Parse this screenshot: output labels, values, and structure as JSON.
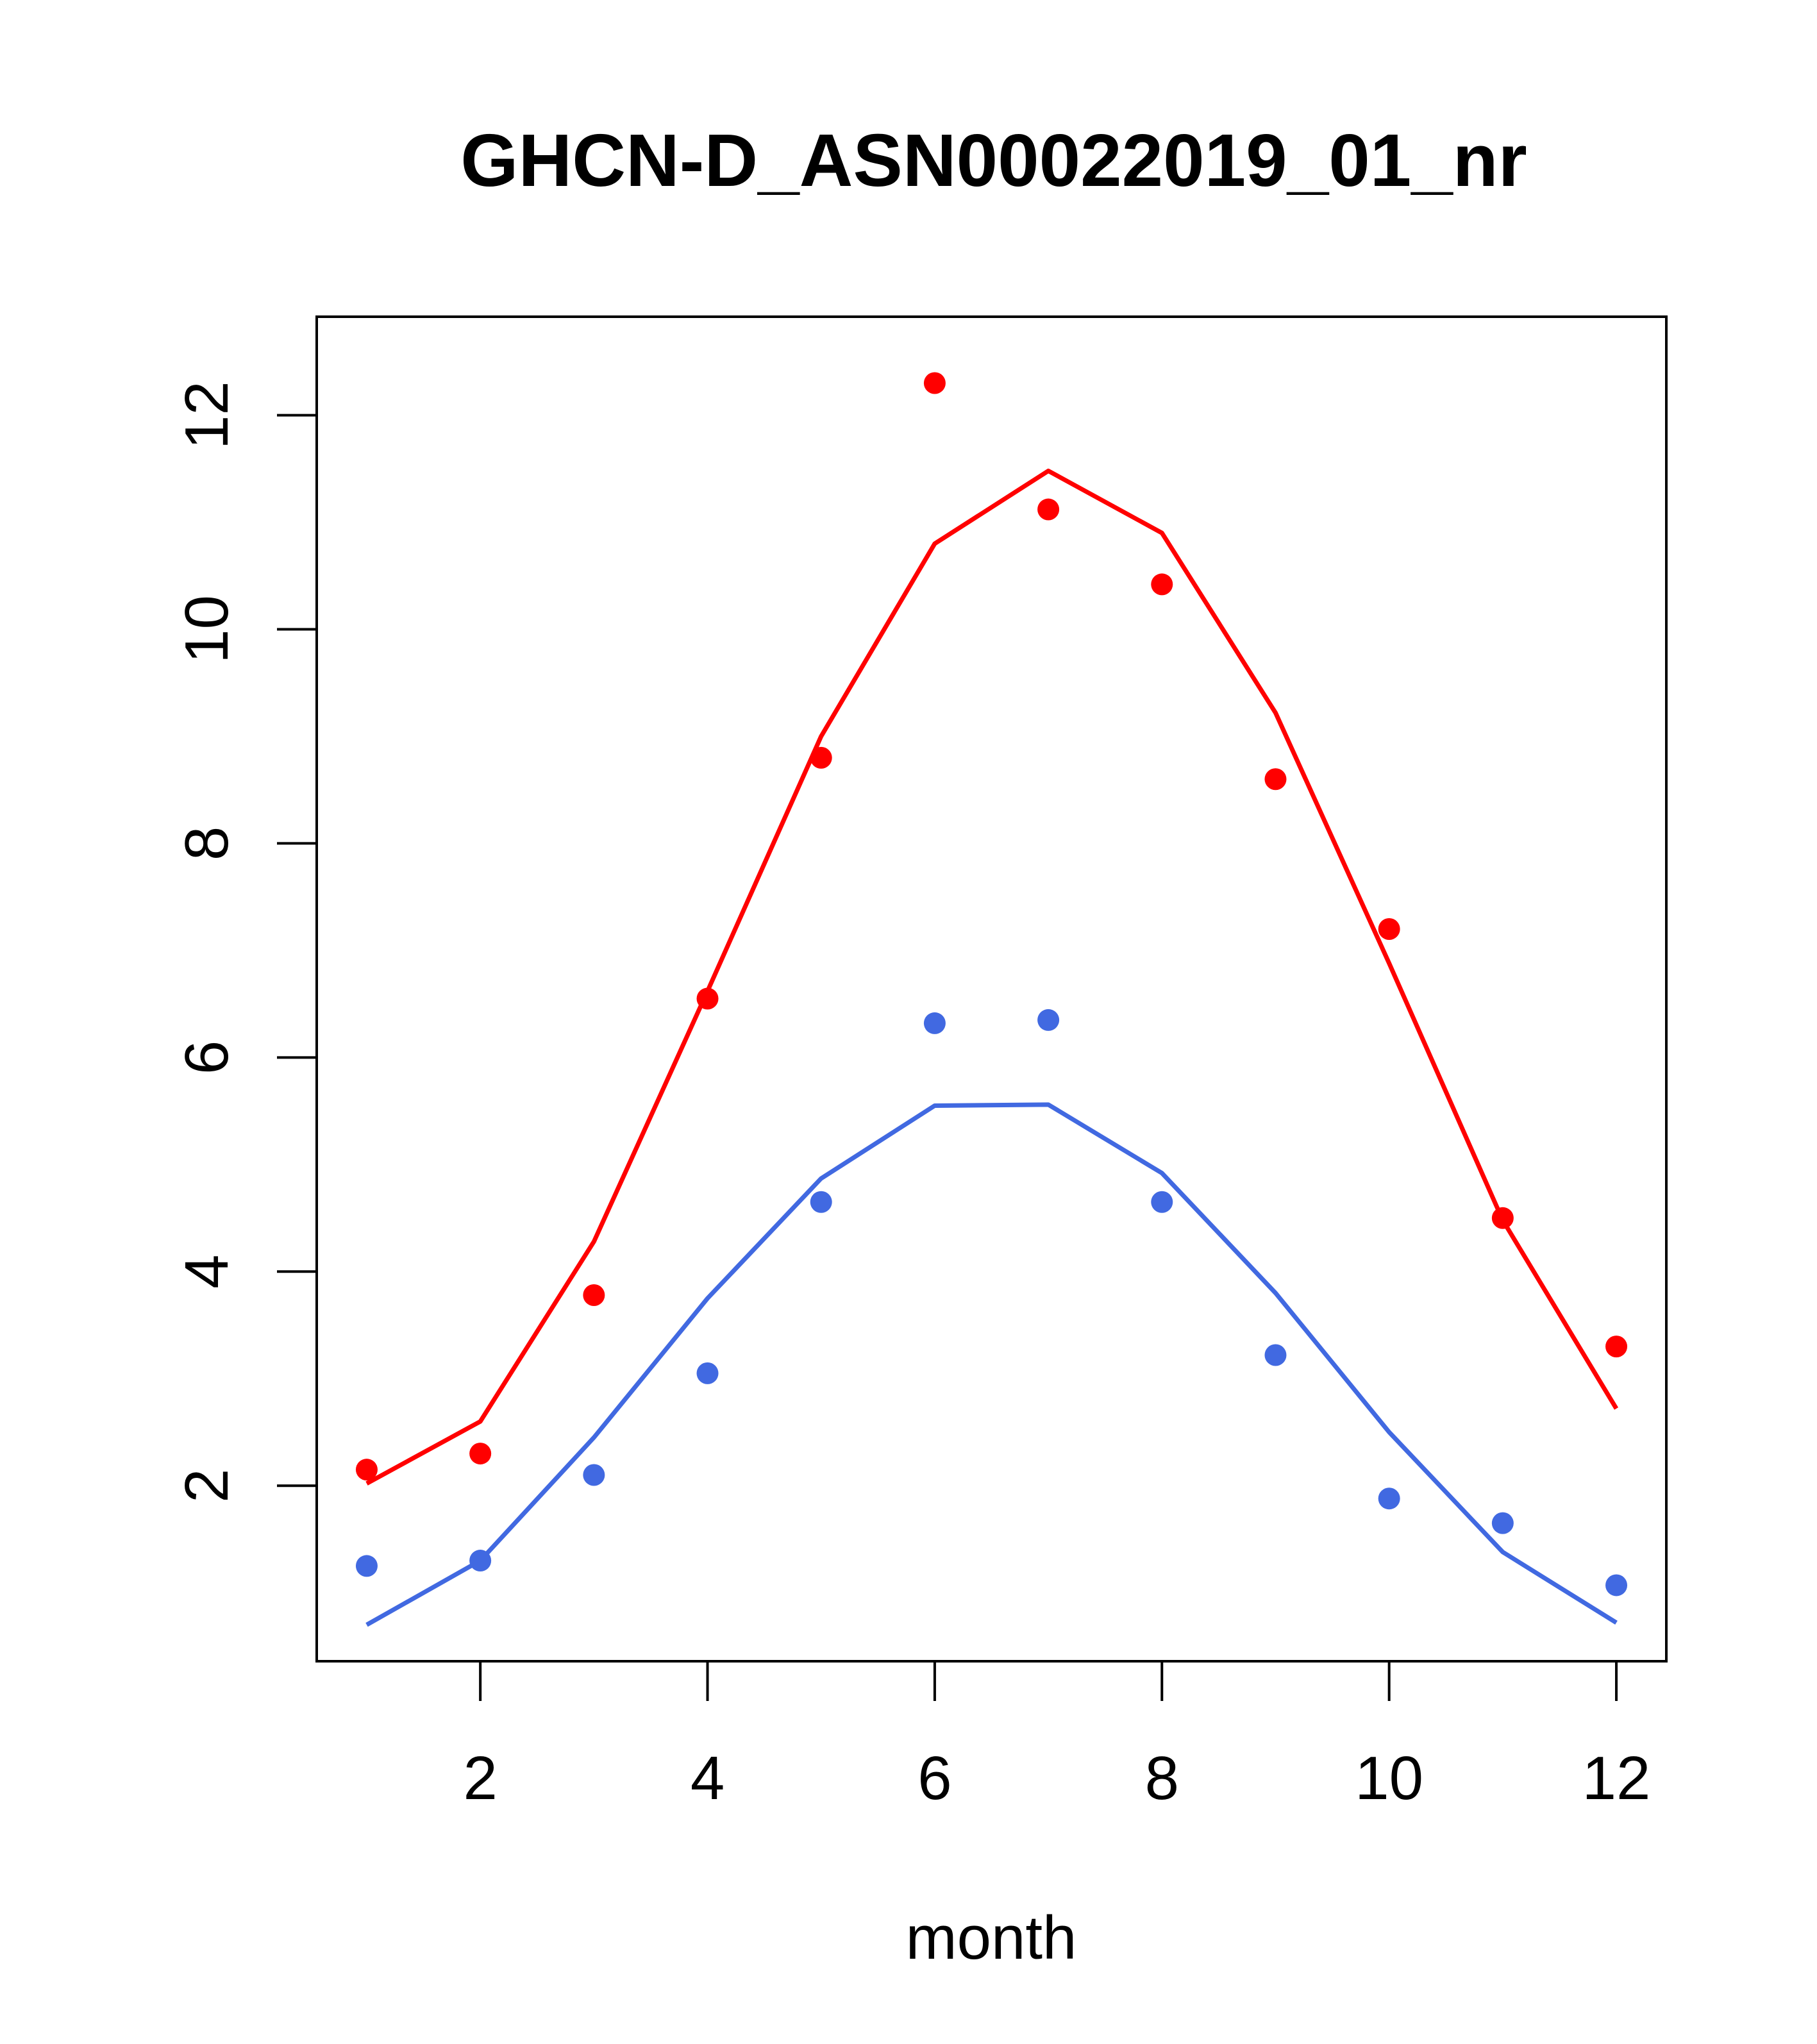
{
  "chart_data": {
    "type": "line",
    "title": "GHCN-D_ASN00022019_01_nr",
    "xlabel": "month",
    "ylabel": "",
    "xlim": [
      0.56,
      12.44
    ],
    "ylim": [
      0.36,
      12.92
    ],
    "x_ticks": [
      2,
      4,
      6,
      8,
      10,
      12
    ],
    "y_ticks": [
      2,
      4,
      6,
      8,
      10,
      12
    ],
    "grid": false,
    "x": [
      1,
      2,
      3,
      4,
      5,
      6,
      7,
      8,
      9,
      10,
      11,
      12
    ],
    "series": [
      {
        "color": "#ff0000",
        "points": [
          2.15,
          2.3,
          3.78,
          6.55,
          8.8,
          12.3,
          11.12,
          10.42,
          8.6,
          7.2,
          4.5,
          3.3
        ],
        "line": [
          2.02,
          2.6,
          4.28,
          6.62,
          9.0,
          10.8,
          11.48,
          10.9,
          9.22,
          6.88,
          4.48,
          2.72
        ]
      },
      {
        "color": "#4169e1",
        "points": [
          1.25,
          1.3,
          2.1,
          3.05,
          4.65,
          6.32,
          6.35,
          4.65,
          3.22,
          1.88,
          1.65,
          1.07
        ],
        "line": [
          0.7,
          1.3,
          2.45,
          3.75,
          4.87,
          5.55,
          5.56,
          4.92,
          3.8,
          2.5,
          1.38,
          0.72
        ]
      }
    ]
  }
}
